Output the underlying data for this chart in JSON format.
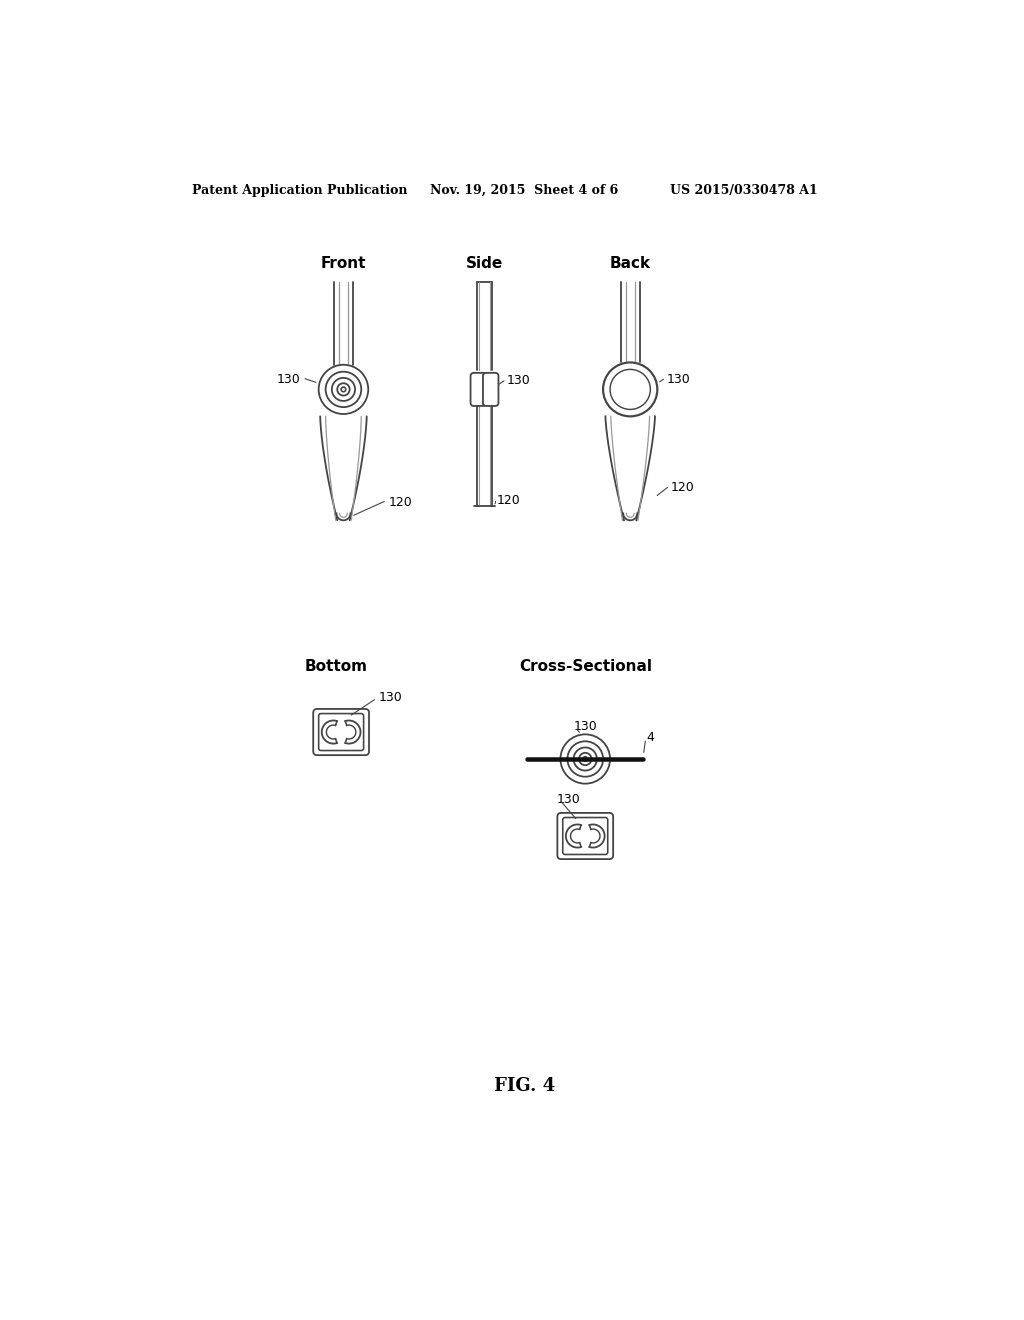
{
  "bg_color": "#ffffff",
  "header_text": "Patent Application Publication",
  "header_date": "Nov. 19, 2015  Sheet 4 of 6",
  "header_patent": "US 2015/0330478 A1",
  "fig_label": "FIG. 4",
  "label_front": "Front",
  "label_side": "Side",
  "label_back": "Back",
  "label_bottom": "Bottom",
  "label_cross": "Cross-Sectional",
  "ref_130": "130",
  "ref_120": "120",
  "ref_4": "4",
  "line_color": "#444444",
  "line_color_light": "#999999",
  "line_width": 1.3
}
